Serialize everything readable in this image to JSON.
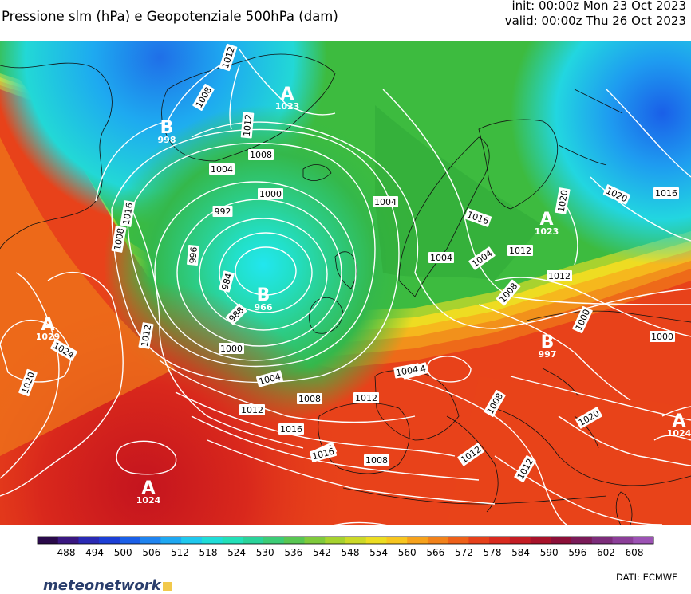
{
  "header": {
    "title": "Pressione slm (hPa) e Geopotenziale 500hPa (dam)",
    "init": "init: 00:00z Mon 23 Oct 2023",
    "valid": "valid: 00:00z Thu 26 Oct 2023"
  },
  "footer": {
    "logo": "meteonetwork",
    "credit": "DATI:  ECMWF"
  },
  "legend": {
    "ticks": [
      "488",
      "494",
      "500",
      "506",
      "512",
      "518",
      "524",
      "530",
      "536",
      "542",
      "548",
      "554",
      "560",
      "566",
      "572",
      "578",
      "584",
      "590",
      "596",
      "602",
      "608"
    ],
    "colors": [
      "#2a0a4a",
      "#3a1780",
      "#2a2ab4",
      "#1c3fd6",
      "#1a5fe8",
      "#1f84f0",
      "#1ea8f2",
      "#1fc8ee",
      "#1fddd8",
      "#22e0b8",
      "#2ad39a",
      "#3ccc76",
      "#58c652",
      "#7fca3c",
      "#a6d22f",
      "#ccd928",
      "#ecdd22",
      "#f7c61f",
      "#f6a21c",
      "#f2821a",
      "#ee6019",
      "#e6401a",
      "#d92a1e",
      "#c41d24",
      "#a8122a",
      "#8c0f38",
      "#7a1a58",
      "#7c2c7a",
      "#8b3e98",
      "#9c52b4"
    ],
    "gradient_colors": [
      "#2a0a4a",
      "#2b2bb8",
      "#1c8ef0",
      "#22dde0",
      "#2cd39a",
      "#35b43c",
      "#8fce34",
      "#f3e31f",
      "#f8a71b",
      "#ee5e19",
      "#d7261c",
      "#9e0f2c",
      "#7e1d64",
      "#9d54b6"
    ]
  },
  "isobar_labels": [
    "1012",
    "1008",
    "1012",
    "1008",
    "1004",
    "1000",
    "992",
    "996",
    "984",
    "988",
    "1000",
    "1004",
    "1008",
    "1012",
    "1016",
    "1020",
    "1024",
    "1020",
    "1012",
    "1016",
    "1008",
    "1004",
    "1004",
    "1004",
    "1012",
    "1016",
    "1020",
    "1012",
    "1008",
    "1000",
    "1000",
    "1012",
    "1008",
    "1016",
    "1020",
    "1016",
    "1012",
    "1008",
    "1004",
    "1020",
    "1004",
    "1012"
  ],
  "pressure_centers": [
    {
      "type": "A",
      "value": "1023"
    },
    {
      "type": "B",
      "value": "998"
    },
    {
      "type": "B",
      "value": "966"
    },
    {
      "type": "A",
      "value": "1029"
    },
    {
      "type": "A",
      "value": "1024"
    },
    {
      "type": "A",
      "value": "1025"
    },
    {
      "type": "A",
      "value": "1023"
    },
    {
      "type": "B",
      "value": "997"
    },
    {
      "type": "A",
      "value": "1024"
    }
  ]
}
